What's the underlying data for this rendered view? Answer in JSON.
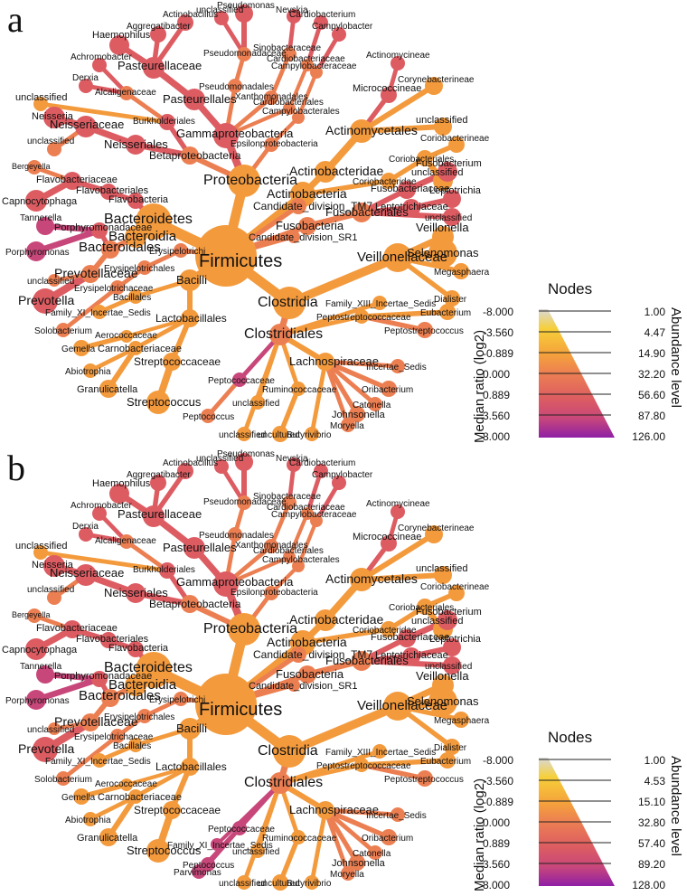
{
  "panels": [
    {
      "letter": "a",
      "legend": {
        "nodes_title": "Nodes",
        "ratio_title": "Median ratio (log2)",
        "abundance_title": "Abundance level",
        "ratios": [
          "-8.000",
          "-3.560",
          "-0.889",
          "0.000",
          "0.889",
          "3.560",
          "8.000"
        ],
        "levels": [
          "1.00",
          "4.47",
          "14.90",
          "32.20",
          "56.60",
          "87.80",
          "126.00"
        ]
      }
    },
    {
      "letter": "b",
      "legend": {
        "nodes_title": "Nodes",
        "ratio_title": "Median ratio (log2)",
        "abundance_title": "Abundance level",
        "ratios": [
          "-8.000",
          "-3.560",
          "-0.889",
          "0.000",
          "0.889",
          "3.560",
          "8.000"
        ],
        "levels": [
          "1.00",
          "4.53",
          "15.10",
          "32.80",
          "57.40",
          "89.20",
          "128.00"
        ]
      }
    }
  ],
  "colors": {
    "gray": "#d9d9d9",
    "yellow": "#f6c437",
    "orange": "#f39a3d",
    "salmon": "#ec7f52",
    "red": "#dc5c62",
    "magenta": "#c8477a",
    "purple": "#8f1fa6"
  },
  "tree": {
    "labels": {
      "firmicutes": "Firmicutes",
      "bacteroidetes": "Bacteroidetes",
      "proteobacteria": "Proteobacteria",
      "actinobacteria": "Actinobacteria",
      "fusobacteria": "Fusobacteria",
      "tm7": "Candidate_division_TM7",
      "sr1": "Candidate_division_SR1",
      "bacteroidia": "Bacteroidia",
      "bacteroidales": "Bacteroidales",
      "flavobacteria": "Flavobacteria",
      "flavobacteriales": "Flavobacteriales",
      "flavobacteriaceae": "Flavobacteriaceae",
      "capnocytophaga": "Capnocytophaga",
      "bergeyella": "Bergeyella",
      "porphyromonadaceae": "Porphyromonadaceae",
      "porphyromonas": "Porphyromonas",
      "tannerella": "Tannerella",
      "prevotellaceae": "Prevotellaceae",
      "prevotella": "Prevotella",
      "unclassified": "unclassified",
      "gammaproteobacteria": "Gammaproteobacteria",
      "betaproteobacteria": "Betaproteobacteria",
      "epsilonproteobacteria": "Epsilonproteobacteria",
      "pasteurellales": "Pasteurellales",
      "pasteurellaceae": "Pasteurellaceae",
      "haemophilus": "Haemophilus",
      "aggregatibacter": "Aggregatibacter",
      "actinobacillus": "Actinobacillus",
      "pseudomonadales": "Pseudomonadales",
      "pseudomonadaceae": "Pseudomonadaceae",
      "pseudomonas": "Pseudomonas",
      "xanthomonadales": "Xanthomonadales",
      "sinobacteraceae": "Sinobacteraceae",
      "nevskia": "Nevskia",
      "cardiobacteriales": "Cardiobacteriales",
      "cardiobacteriaceae": "Cardiobacteriaceae",
      "cardiobacterium": "Cardiobacterium",
      "campylobacterales": "Campylobacterales",
      "campylobacteraceae": "Campylobacteraceae",
      "campylobacter": "Campylobacter",
      "neisseriales": "Neisseriales",
      "neisseriaceae": "Neisseriaceae",
      "neisseria": "Neisseria",
      "burkholderiales": "Burkholderiales",
      "alcaligenaceae": "Alcaligenaceae",
      "achromobacter": "Achromobacter",
      "derxia": "Derxia",
      "actinobacteridae": "Actinobacteridae",
      "actinomycetales": "Actinomycetales",
      "micrococcineae": "Micrococcineae",
      "actinomycineae": "Actinomycineae",
      "corynebacterineae": "Corynebacterineae",
      "coriobacteridae": "Coriobacteridae",
      "coriobacteriales": "Coriobacteriales",
      "coriobacterineae": "Coriobacterineae",
      "fusobacteriales": "Fusobacteriales",
      "fusobacteriaceae": "Fusobacteriaceae",
      "fusobacterium": "Fusobacterium",
      "leptotrichiaceae": "Leptotrichiaceae",
      "leptotrichia": "Leptotrichia",
      "clostridia": "Clostridia",
      "clostridiales": "Clostridiales",
      "bacilli": "Bacilli",
      "lactobacillales": "Lactobacillales",
      "bacillales": "Bacillales",
      "erysipelotrichi": "Erysipelotrichi",
      "erysipelotrichales": "Erysipelotrichales",
      "erysipelotrichaceae": "Erysipelotrichaceae",
      "family_xi": "Family_XI_Incertae_Sedis",
      "family_xiii": "Family_XIII_Incertae_Sedis",
      "solobacterium": "Solobacterium",
      "streptococcaceae": "Streptococcaceae",
      "streptococcus": "Streptococcus",
      "carnobacteriaceae": "Carnobacteriaceae",
      "granulicatella": "Granulicatella",
      "abiotrophia": "Abiotrophia",
      "aerococcaceae": "Aerococcaceae",
      "gemella": "Gemella",
      "veillonellaceae": "Veillonellaceae",
      "veillonella": "Veillonella",
      "selenomonas": "Selenomonas",
      "megasphaera": "Megasphaera",
      "dialister": "Dialister",
      "peptostreptococcaceae": "Peptostreptococcaceae",
      "peptostreptococcus": "Peptostreptococcus",
      "eubacterium": "Eubacterium",
      "lachnospiraceae": "Lachnospiraceae",
      "oribacterium": "Oribacterium",
      "catonella": "Catonella",
      "johnsonella": "Johnsonella",
      "moryella": "Moryella",
      "butyrivibrio": "Butyrivibrio",
      "peptococcaceae": "Peptococcaceae",
      "peptococcus": "Peptococcus",
      "ruminococcaceae": "Ruminococcaceae",
      "incertae_sedis": "Incertae_Sedis",
      "uncultured": "uncultured",
      "parvimonas": "Parvimonas"
    }
  }
}
